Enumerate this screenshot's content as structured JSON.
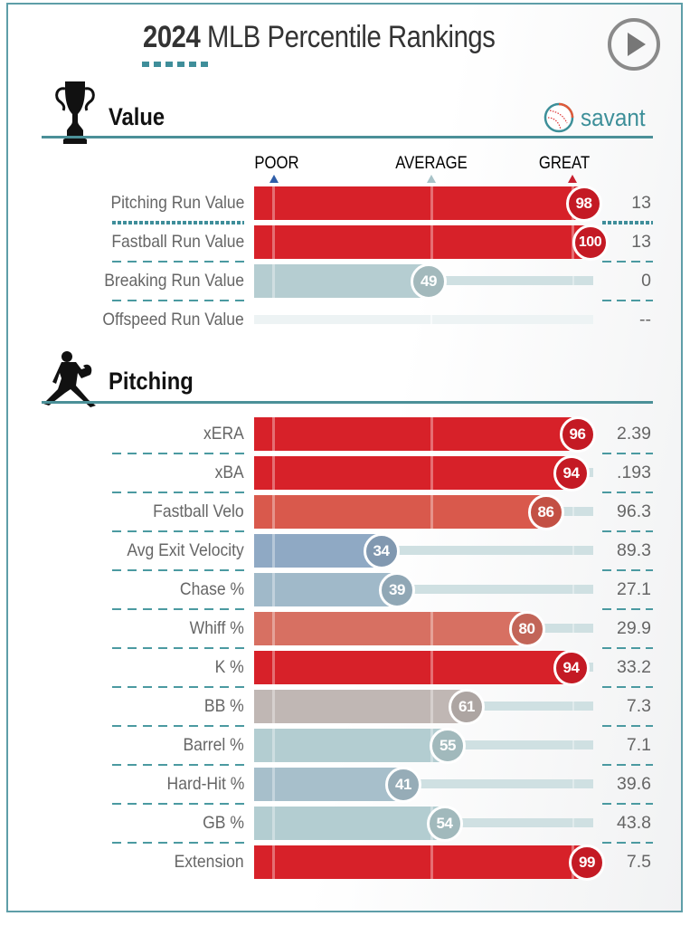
{
  "header": {
    "year": "2024",
    "title_rest": "MLB Percentile Rankings",
    "play_icon": "play-circle-icon"
  },
  "brand": {
    "text": "savant",
    "icon": "baseball-icon"
  },
  "scale": {
    "poor": "POOR",
    "average": "AVERAGE",
    "great": "GREAT",
    "poor_color": "#2f5ea8",
    "average_color": "#a8c3c8",
    "great_color": "#c8202f"
  },
  "sections": [
    {
      "title": "Value",
      "icon": "trophy-icon"
    },
    {
      "title": "Pitching",
      "icon": "pitcher-icon"
    }
  ],
  "chart_data": {
    "type": "bar",
    "title": "2024 MLB Percentile Rankings",
    "xlabel": "Percentile",
    "xlim": [
      0,
      100
    ],
    "scale_markers": {
      "POOR": 5,
      "AVERAGE": 50,
      "GREAT": 95
    },
    "groups": [
      {
        "name": "Value",
        "rows": [
          {
            "label": "Pitching Run Value",
            "percentile": 98,
            "value": "13",
            "color": "#d72129"
          },
          {
            "label": "Fastball Run Value",
            "percentile": 100,
            "value": "13",
            "color": "#d72129"
          },
          {
            "label": "Breaking Run Value",
            "percentile": 49,
            "value": "0",
            "color": "#b5cdd1"
          },
          {
            "label": "Offspeed Run Value",
            "percentile": null,
            "value": "--",
            "color": "#e8f0f1"
          }
        ]
      },
      {
        "name": "Pitching",
        "rows": [
          {
            "label": "xERA",
            "percentile": 96,
            "value": "2.39",
            "color": "#d72129"
          },
          {
            "label": "xBA",
            "percentile": 94,
            "value": ".193",
            "color": "#d72129"
          },
          {
            "label": "Fastball Velo",
            "percentile": 86,
            "value": "96.3",
            "color": "#d9594c"
          },
          {
            "label": "Avg Exit Velocity",
            "percentile": 34,
            "value": "89.3",
            "color": "#8fa9c4"
          },
          {
            "label": "Chase %",
            "percentile": 39,
            "value": "27.1",
            "color": "#a0b9c9"
          },
          {
            "label": "Whiff %",
            "percentile": 80,
            "value": "29.9",
            "color": "#d77062"
          },
          {
            "label": "K %",
            "percentile": 94,
            "value": "33.2",
            "color": "#d72129"
          },
          {
            "label": "BB %",
            "percentile": 61,
            "value": "7.3",
            "color": "#c0b7b4"
          },
          {
            "label": "Barrel %",
            "percentile": 55,
            "value": "7.1",
            "color": "#b3cdd1"
          },
          {
            "label": "Hard-Hit %",
            "percentile": 41,
            "value": "39.6",
            "color": "#a7bfcb"
          },
          {
            "label": "GB %",
            "percentile": 54,
            "value": "43.8",
            "color": "#b3cdd1"
          },
          {
            "label": "Extension",
            "percentile": 99,
            "value": "7.5",
            "color": "#d72129"
          }
        ]
      }
    ]
  }
}
